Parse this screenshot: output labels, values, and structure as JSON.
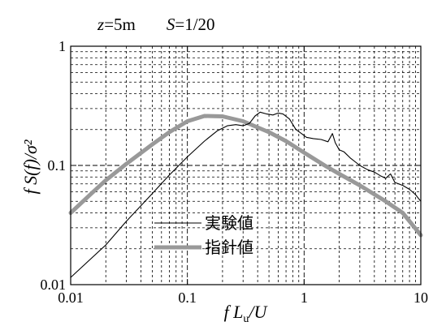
{
  "chart_data": {
    "type": "line",
    "title_parts": {
      "z_symbol": "z",
      "z_value": "=5m",
      "s_symbol": "S",
      "s_value": "=1/20"
    },
    "xlabel_parts": {
      "pre": "f L",
      "sub": "u",
      "post": "/U"
    },
    "ylabel": "f S(f)/σ²",
    "xscale": "log",
    "yscale": "log",
    "xlim": [
      0.01,
      10
    ],
    "ylim": [
      0.01,
      1
    ],
    "grid": true,
    "x_ticks": [
      "0.01",
      "0.1",
      "1",
      "10"
    ],
    "y_ticks": [
      "0.01",
      "0.1",
      "1"
    ],
    "legend_position": "lower-center",
    "series": [
      {
        "name": "実験値",
        "color": "#000000",
        "points": [
          [
            0.01,
            0.0115
          ],
          [
            0.02,
            0.0215
          ],
          [
            0.03,
            0.034
          ],
          [
            0.05,
            0.058
          ],
          [
            0.07,
            0.083
          ],
          [
            0.1,
            0.118
          ],
          [
            0.14,
            0.16
          ],
          [
            0.18,
            0.195
          ],
          [
            0.22,
            0.215
          ],
          [
            0.26,
            0.22
          ],
          [
            0.3,
            0.215
          ],
          [
            0.34,
            0.225
          ],
          [
            0.38,
            0.26
          ],
          [
            0.42,
            0.28
          ],
          [
            0.48,
            0.27
          ],
          [
            0.54,
            0.265
          ],
          [
            0.6,
            0.275
          ],
          [
            0.66,
            0.27
          ],
          [
            0.75,
            0.245
          ],
          [
            0.85,
            0.2
          ],
          [
            0.95,
            0.185
          ],
          [
            1.05,
            0.172
          ],
          [
            1.2,
            0.168
          ],
          [
            1.4,
            0.165
          ],
          [
            1.6,
            0.158
          ],
          [
            1.75,
            0.185
          ],
          [
            1.85,
            0.155
          ],
          [
            2.0,
            0.135
          ],
          [
            2.2,
            0.13
          ],
          [
            2.5,
            0.115
          ],
          [
            3.0,
            0.1
          ],
          [
            3.5,
            0.092
          ],
          [
            4.0,
            0.088
          ],
          [
            4.5,
            0.082
          ],
          [
            5.0,
            0.078
          ],
          [
            5.5,
            0.085
          ],
          [
            6.0,
            0.072
          ],
          [
            7.0,
            0.068
          ],
          [
            8.0,
            0.063
          ],
          [
            9.0,
            0.057
          ],
          [
            10.0,
            0.05
          ]
        ]
      },
      {
        "name": "指針値",
        "color": "#999999",
        "points": [
          [
            0.01,
            0.04
          ],
          [
            0.015,
            0.058
          ],
          [
            0.02,
            0.075
          ],
          [
            0.03,
            0.103
          ],
          [
            0.05,
            0.15
          ],
          [
            0.07,
            0.19
          ],
          [
            0.1,
            0.235
          ],
          [
            0.14,
            0.26
          ],
          [
            0.2,
            0.258
          ],
          [
            0.3,
            0.235
          ],
          [
            0.5,
            0.19
          ],
          [
            0.7,
            0.16
          ],
          [
            1.0,
            0.128
          ],
          [
            1.5,
            0.1
          ],
          [
            2.0,
            0.085
          ],
          [
            3.0,
            0.068
          ],
          [
            5.0,
            0.05
          ],
          [
            7.0,
            0.04
          ],
          [
            10.0,
            0.026
          ]
        ]
      }
    ]
  }
}
